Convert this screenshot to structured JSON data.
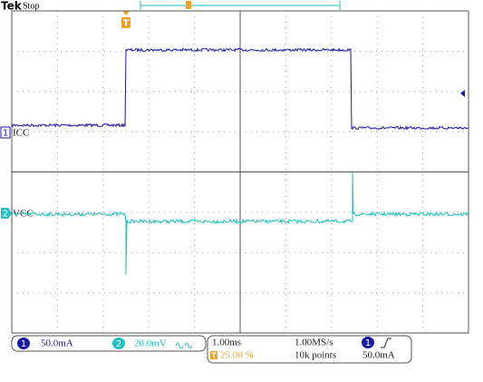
{
  "header": {
    "brand": "Tek",
    "status": "Stop"
  },
  "trigger_marker": "T",
  "channels": [
    {
      "number": "1",
      "label": "ICC",
      "scale": "50.0mA"
    },
    {
      "number": "2",
      "label": "VCC",
      "scale": "20.0mV"
    }
  ],
  "timebase": {
    "scale": "1.00ms",
    "sample_rate": "1.00MS/s",
    "trigger_icon": "T",
    "trigger_position": "25.00 %",
    "record_length": "10k points"
  },
  "trigger": {
    "source": "1",
    "level": "50.0mA"
  }
}
